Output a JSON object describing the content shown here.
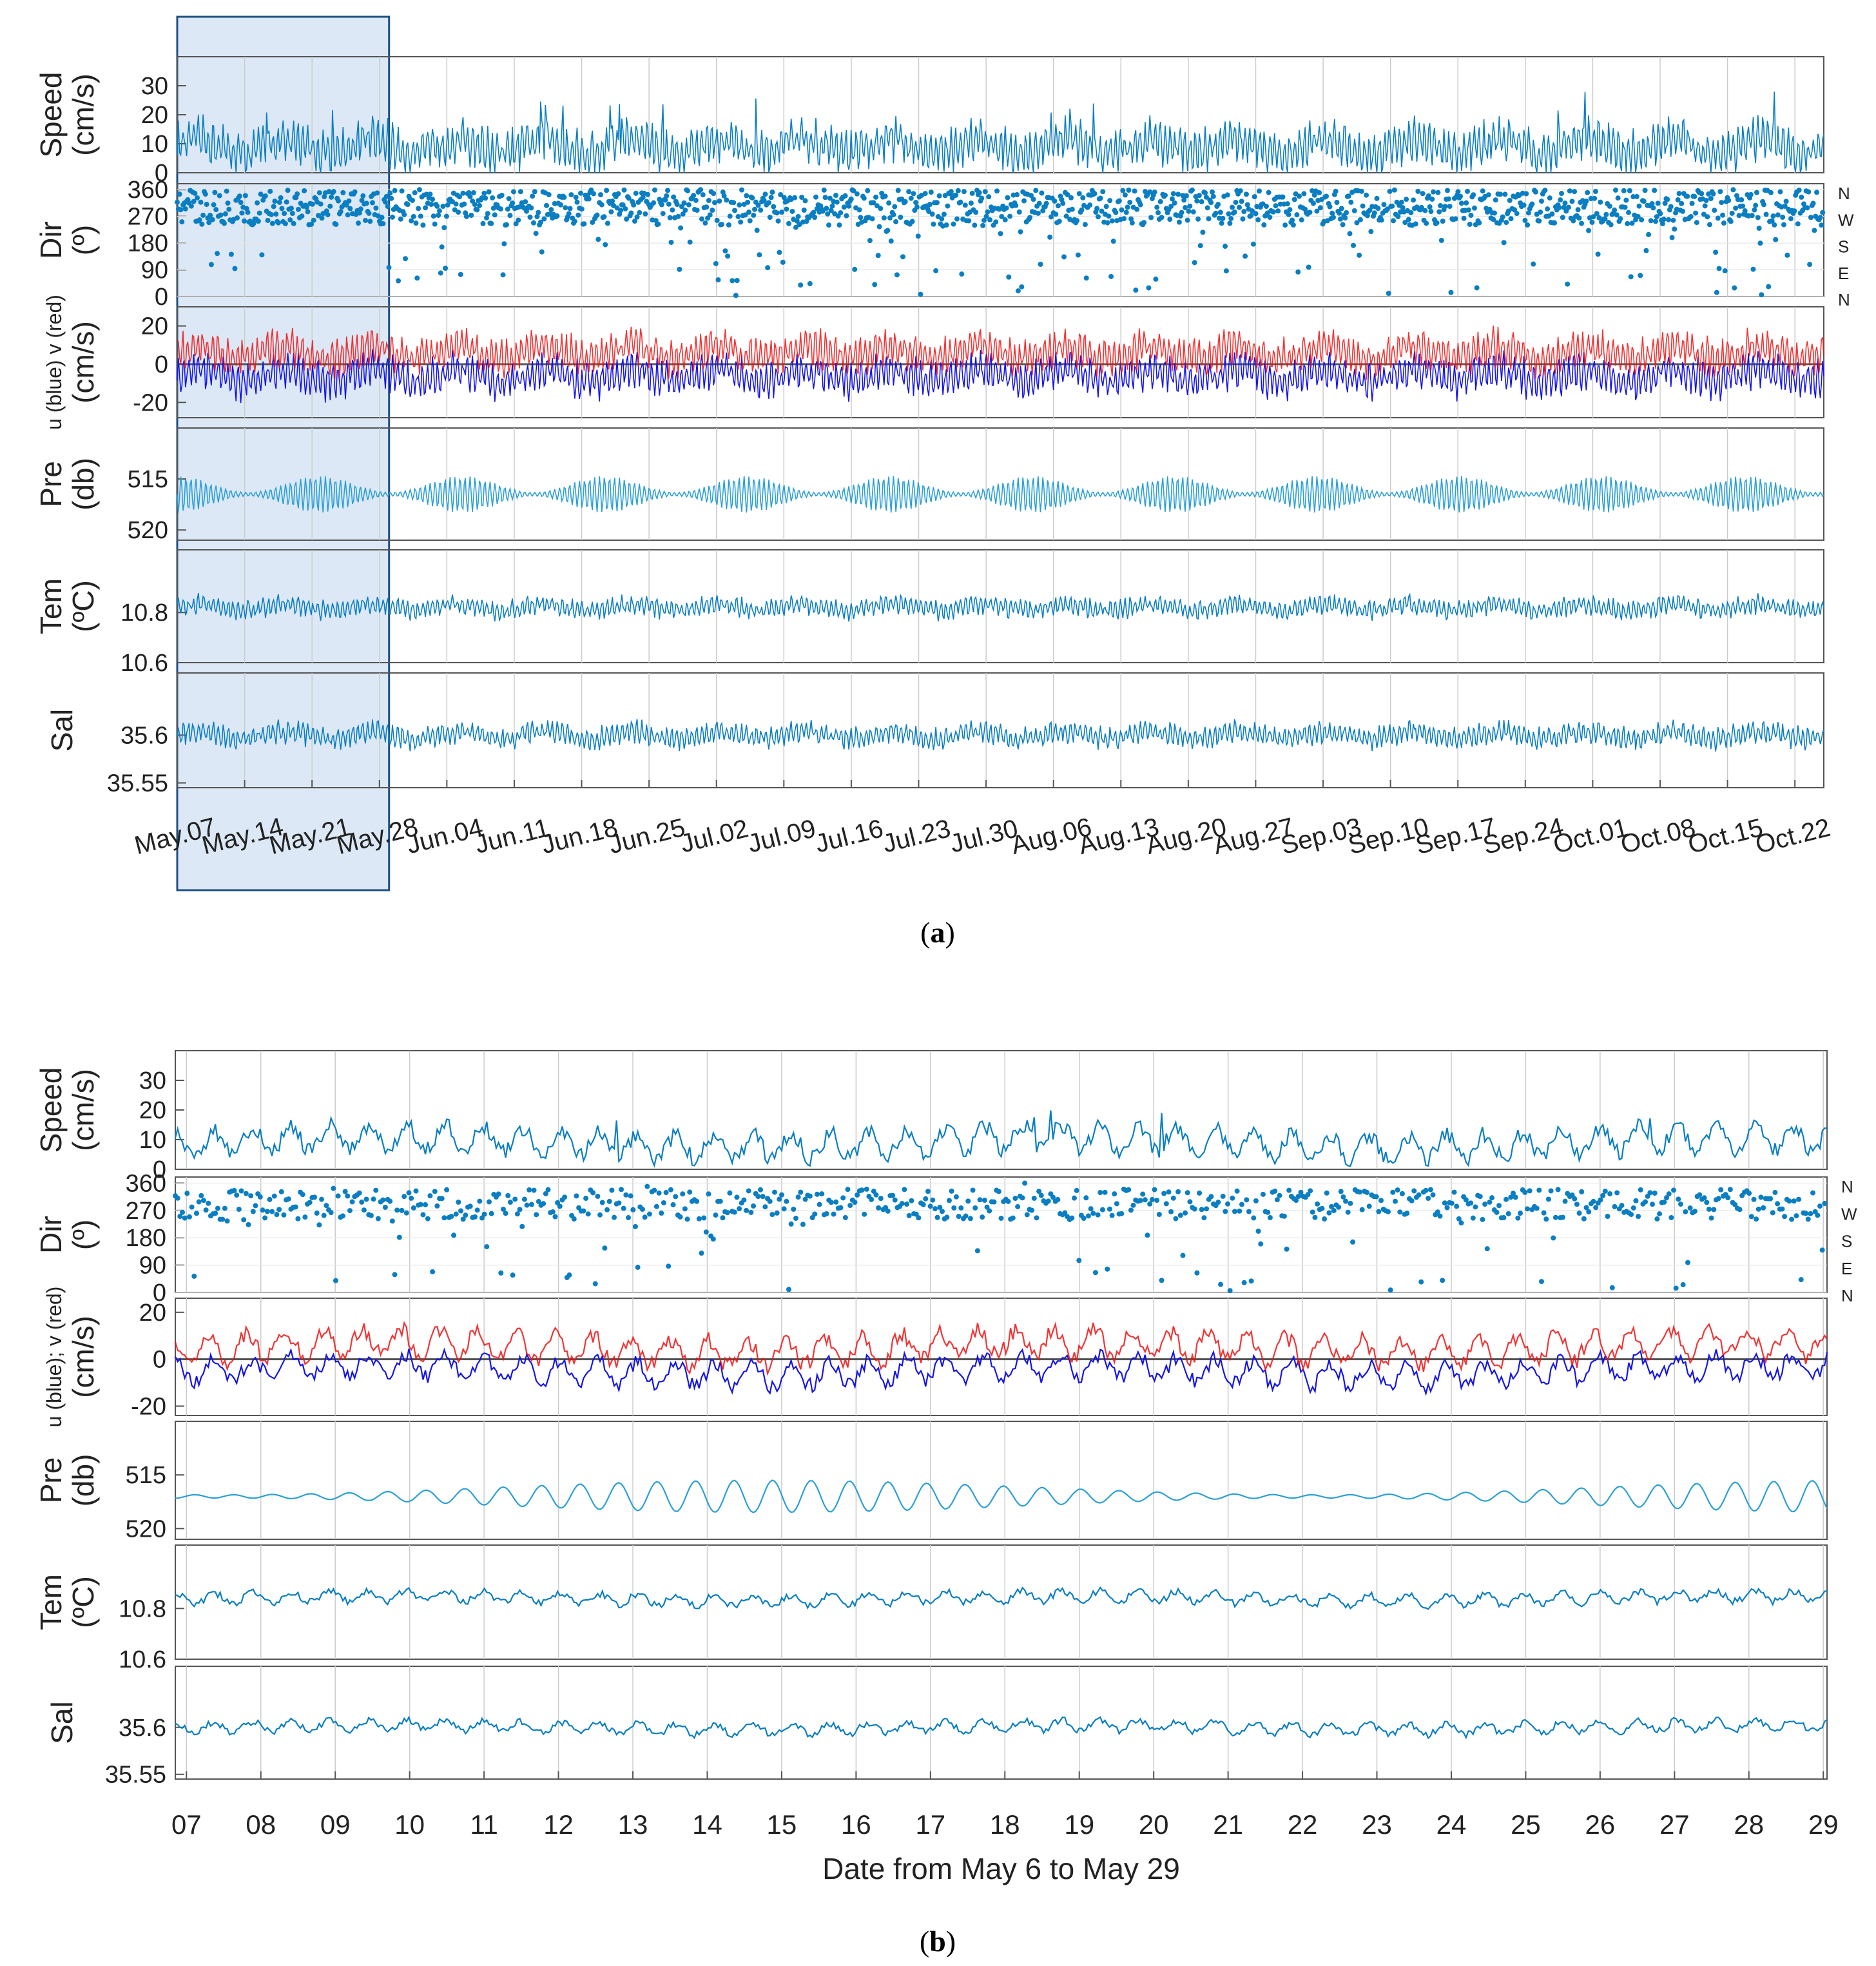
{
  "captions": {
    "a": "a",
    "b": "b"
  },
  "colors": {
    "series": "#0a7ec2",
    "light": "#2b9fd6",
    "u": "#1515e8",
    "v": "#f01010",
    "axis": "#000000",
    "grid": "#cccccc",
    "highlight": "#dce8f5",
    "highlight_border": "#1f4f82"
  },
  "direction_letters": [
    "N",
    "W",
    "S",
    "E",
    "N"
  ],
  "chart_data": [
    {
      "id": "a",
      "type": "line",
      "title": "",
      "xlabel": "",
      "x_tick_labels": [
        "May.07",
        "May.14",
        "May.21",
        "May.28",
        "Jun.04",
        "Jun.11",
        "Jun.18",
        "Jun.25",
        "Jul.02",
        "Jul.09",
        "Jul.16",
        "Jul.23",
        "Jul.30",
        "Aug.06",
        "Aug.13",
        "Aug.20",
        "Aug.27",
        "Sep.03",
        "Sep.10",
        "Sep.17",
        "Sep.24",
        "Oct.01",
        "Oct.08",
        "Oct.15",
        "Oct.22"
      ],
      "x_range_days": [
        0,
        171
      ],
      "highlight_days": [
        0,
        22
      ],
      "panels": [
        {
          "key": "speed",
          "ylabel": [
            "Speed",
            "(cm/s)"
          ],
          "yticks": [
            "30",
            "20",
            "10",
            "0"
          ],
          "tick_values": [
            30,
            20,
            10,
            0
          ],
          "ylim": [
            0,
            40
          ],
          "series": [
            {
              "name": "Speed",
              "style": "line",
              "base": 9,
              "amp": 8,
              "spike": 28
            }
          ]
        },
        {
          "key": "dir",
          "ylabel": [
            "Dir",
            "(º)"
          ],
          "yticks": [
            "360",
            "270",
            "180",
            "90",
            "0"
          ],
          "tick_values": [
            360,
            270,
            180,
            90,
            0
          ],
          "ylim": [
            0,
            380
          ],
          "right_letters": true,
          "series": [
            {
              "name": "Direction",
              "style": "dots",
              "center": 300,
              "spread": 60
            }
          ]
        },
        {
          "key": "uv",
          "ylabel": [
            "u (blue) v (red)",
            "(cm/s)"
          ],
          "yticks": [
            "20",
            "0",
            "-20"
          ],
          "tick_values": [
            20,
            0,
            -20
          ],
          "ylim": [
            -28,
            30
          ],
          "zero_line": true,
          "series": [
            {
              "name": "u (blue)",
              "style": "line",
              "base": -6,
              "amp": 10
            },
            {
              "name": "v (red)",
              "style": "line",
              "base": 6,
              "amp": 10
            }
          ]
        },
        {
          "key": "pre",
          "ylabel": [
            "Pre",
            "(db)"
          ],
          "yticks": [
            "515",
            "520"
          ],
          "tick_values": [
            515,
            520
          ],
          "ylim": [
            521,
            510
          ],
          "series": [
            {
              "name": "Pressure",
              "style": "tide",
              "mean": 516.5,
              "amp": 1.8
            }
          ]
        },
        {
          "key": "tem",
          "ylabel": [
            "Tem",
            "(ºC)"
          ],
          "yticks": [
            "10.8",
            "10.6"
          ],
          "tick_values": [
            10.8,
            10.6
          ],
          "ylim": [
            10.6,
            11.05
          ],
          "series": [
            {
              "name": "Temperature",
              "style": "line",
              "base": 10.82,
              "amp": 0.04
            }
          ]
        },
        {
          "key": "sal",
          "ylabel": [
            "Sal"
          ],
          "yticks": [
            "35.6",
            "35.55"
          ],
          "tick_values": [
            35.6,
            35.55
          ],
          "ylim": [
            35.545,
            35.665
          ],
          "series": [
            {
              "name": "Salinity",
              "style": "line",
              "base": 35.6,
              "amp": 0.012
            }
          ]
        }
      ]
    },
    {
      "id": "b",
      "type": "line",
      "title": "",
      "xlabel": "Date from May 6 to May 29",
      "x_tick_labels": [
        "07",
        "08",
        "09",
        "10",
        "11",
        "12",
        "13",
        "14",
        "15",
        "16",
        "17",
        "18",
        "19",
        "20",
        "21",
        "22",
        "23",
        "24",
        "25",
        "26",
        "27",
        "28",
        "29"
      ],
      "x_range_days": [
        6.85,
        29.05
      ],
      "panels": [
        {
          "key": "speed",
          "ylabel": [
            "Speed",
            "(cm/s)"
          ],
          "yticks": [
            "30",
            "20",
            "10",
            "0"
          ],
          "tick_values": [
            30,
            20,
            10,
            0
          ],
          "ylim": [
            0,
            40
          ],
          "series": [
            {
              "name": "Speed",
              "style": "line",
              "base": 9,
              "amp": 6,
              "spike": 22
            }
          ]
        },
        {
          "key": "dir",
          "ylabel": [
            "Dir",
            "(º)"
          ],
          "yticks": [
            "360",
            "270",
            "180",
            "90",
            "0"
          ],
          "tick_values": [
            360,
            270,
            180,
            90,
            0
          ],
          "ylim": [
            0,
            380
          ],
          "right_letters": true,
          "series": [
            {
              "name": "Direction",
              "style": "dots",
              "center": 290,
              "spread": 50
            }
          ]
        },
        {
          "key": "uv",
          "ylabel": [
            "u (blue); v (red)",
            "(cm/s)"
          ],
          "yticks": [
            "20",
            "0",
            "-20"
          ],
          "tick_values": [
            20,
            0,
            -20
          ],
          "ylim": [
            -24,
            26
          ],
          "zero_line": true,
          "series": [
            {
              "name": "u (blue)",
              "style": "line",
              "base": -5,
              "amp": 7
            },
            {
              "name": "v (red)",
              "style": "line",
              "base": 5,
              "amp": 8
            }
          ]
        },
        {
          "key": "pre",
          "ylabel": [
            "Pre",
            "(db)"
          ],
          "yticks": [
            "515",
            "520"
          ],
          "tick_values": [
            515,
            520
          ],
          "ylim": [
            521,
            510
          ],
          "series": [
            {
              "name": "Pressure",
              "style": "tide",
              "mean": 517,
              "amp": 1.5
            }
          ]
        },
        {
          "key": "tem",
          "ylabel": [
            "Tem",
            "(ºC)"
          ],
          "yticks": [
            "10.8",
            "10.6"
          ],
          "tick_values": [
            10.8,
            10.6
          ],
          "ylim": [
            10.6,
            11.05
          ],
          "series": [
            {
              "name": "Temperature",
              "style": "line",
              "base": 10.84,
              "amp": 0.03
            }
          ]
        },
        {
          "key": "sal",
          "ylabel": [
            "Sal"
          ],
          "yticks": [
            "35.6",
            "35.55"
          ],
          "tick_values": [
            35.6,
            35.55
          ],
          "ylim": [
            35.545,
            35.665
          ],
          "series": [
            {
              "name": "Salinity",
              "style": "line",
              "base": 35.6,
              "amp": 0.008
            }
          ]
        }
      ]
    }
  ]
}
